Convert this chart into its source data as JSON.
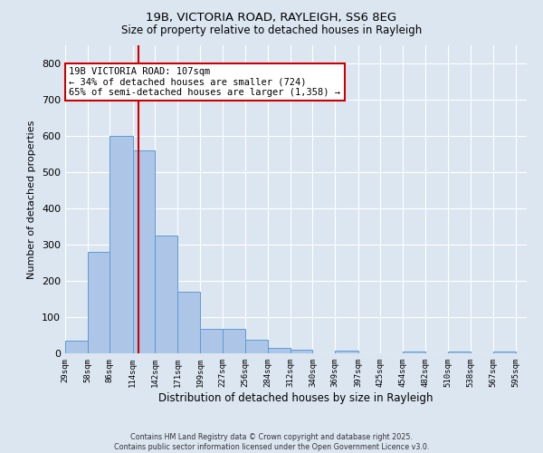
{
  "title1": "19B, VICTORIA ROAD, RAYLEIGH, SS6 8EG",
  "title2": "Size of property relative to detached houses in Rayleigh",
  "xlabel": "Distribution of detached houses by size in Rayleigh",
  "ylabel": "Number of detached properties",
  "bar_values": [
    35,
    280,
    600,
    560,
    325,
    170,
    68,
    68,
    37,
    15,
    10,
    0,
    8,
    0,
    0,
    5,
    0,
    5,
    0,
    5
  ],
  "categories": [
    "29sqm",
    "58sqm",
    "86sqm",
    "114sqm",
    "142sqm",
    "171sqm",
    "199sqm",
    "227sqm",
    "256sqm",
    "284sqm",
    "312sqm",
    "340sqm",
    "369sqm",
    "397sqm",
    "425sqm",
    "454sqm",
    "482sqm",
    "510sqm",
    "538sqm",
    "567sqm",
    "595sqm"
  ],
  "bar_color": "#adc6e8",
  "bar_edge_color": "#5b9bd5",
  "background_color": "#dce6f1",
  "grid_color": "#ffffff",
  "annotation_text": "19B VICTORIA ROAD: 107sqm\n← 34% of detached houses are smaller (724)\n65% of semi-detached houses are larger (1,358) →",
  "annotation_box_color": "#ffffff",
  "annotation_box_edge": "#cc0000",
  "vline_color": "#cc0000",
  "ylim": [
    0,
    850
  ],
  "yticks": [
    0,
    100,
    200,
    300,
    400,
    500,
    600,
    700,
    800
  ],
  "footnote": "Contains HM Land Registry data © Crown copyright and database right 2025.\nContains public sector information licensed under the Open Government Licence v3.0."
}
